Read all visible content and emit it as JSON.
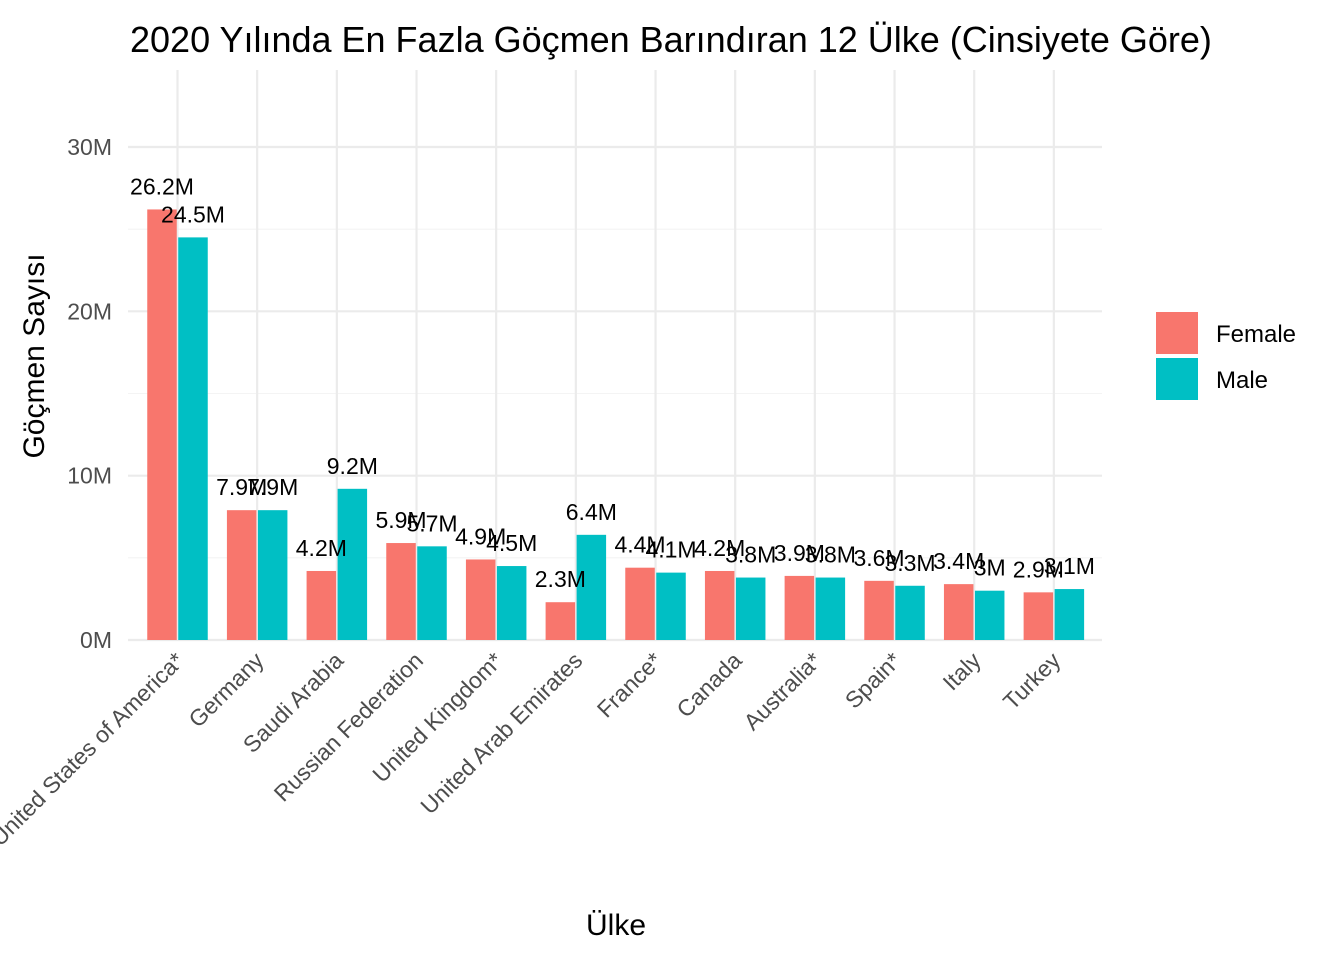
{
  "chart_data": {
    "type": "bar",
    "title": "2020 Yılında En Fazla Göçmen Barındıran 12 Ülke (Cinsiyete Göre)",
    "xlabel": "Ülke",
    "ylabel": "Göçmen Sayısı",
    "categories": [
      "United States of America*",
      "Germany",
      "Saudi Arabia",
      "Russian Federation",
      "United Kingdom*",
      "United Arab Emirates",
      "France*",
      "Canada",
      "Australia*",
      "Spain*",
      "Italy",
      "Turkey"
    ],
    "series": [
      {
        "name": "Female",
        "color": "#F8766D",
        "values": [
          26.2,
          7.9,
          4.2,
          5.9,
          4.9,
          2.3,
          4.4,
          4.2,
          3.9,
          3.6,
          3.4,
          2.9
        ],
        "labels": [
          "26.2M",
          "7.9M",
          "4.2M",
          "5.9M",
          "4.9M",
          "2.3M",
          "4.4M",
          "4.2M",
          "3.9M",
          "3.6M",
          "3.4M",
          "2.9M"
        ]
      },
      {
        "name": "Male",
        "color": "#00BFC4",
        "values": [
          24.5,
          7.9,
          9.2,
          5.7,
          4.5,
          6.4,
          4.1,
          3.8,
          3.8,
          3.3,
          3.0,
          3.1
        ],
        "labels": [
          "24.5M",
          "7.9M",
          "9.2M",
          "5.7M",
          "4.5M",
          "6.4M",
          "4.1M",
          "3.8M",
          "3.8M",
          "3.3M",
          "3M",
          "3.1M"
        ]
      }
    ],
    "value_unit": "millions",
    "ylim": [
      0,
      30
    ],
    "yticks": [
      0,
      10,
      20,
      30
    ],
    "ytick_labels": [
      "0M",
      "10M",
      "20M",
      "30M"
    ],
    "grid": true,
    "legend": {
      "position": "right",
      "entries": [
        "Female",
        "Male"
      ]
    }
  }
}
